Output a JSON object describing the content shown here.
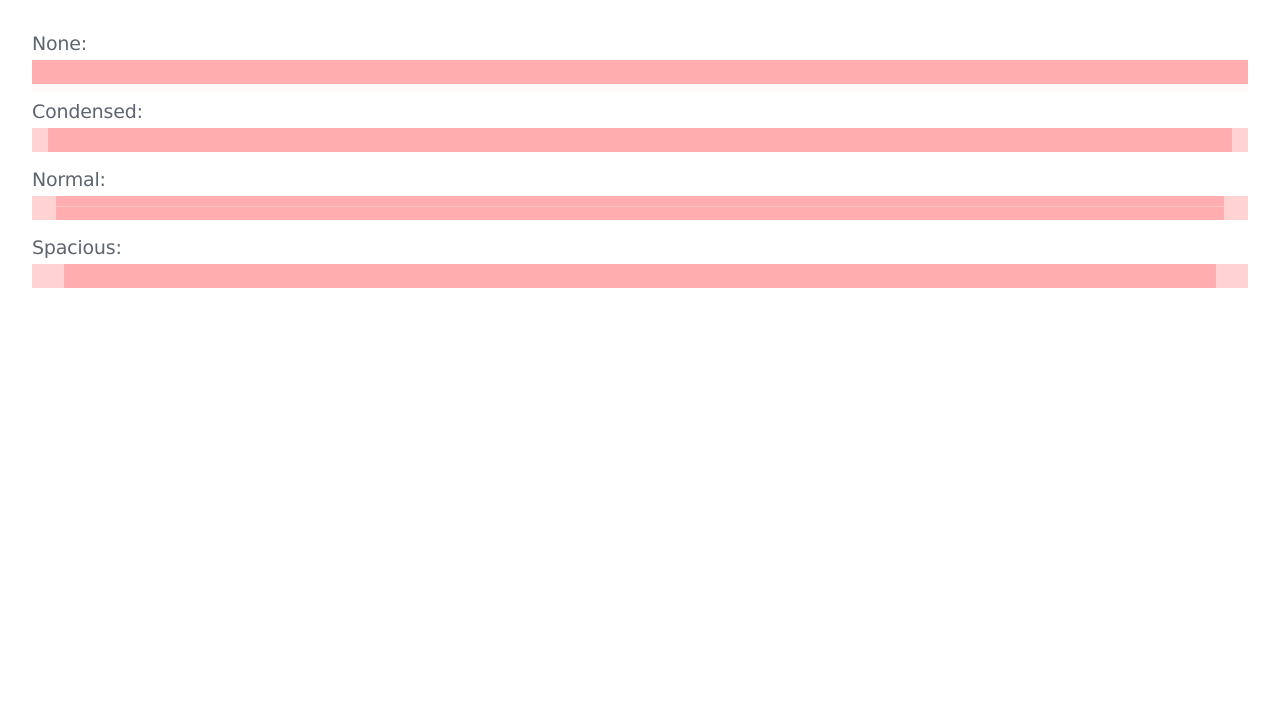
{
  "rows": [
    {
      "label": "None:"
    },
    {
      "label": "Condensed:"
    },
    {
      "label": "Normal:"
    },
    {
      "label": "Spacious:"
    }
  ],
  "colors": {
    "label_text": "#5d6470",
    "track": "#ffd3d4",
    "fill": "#ffadaf"
  }
}
